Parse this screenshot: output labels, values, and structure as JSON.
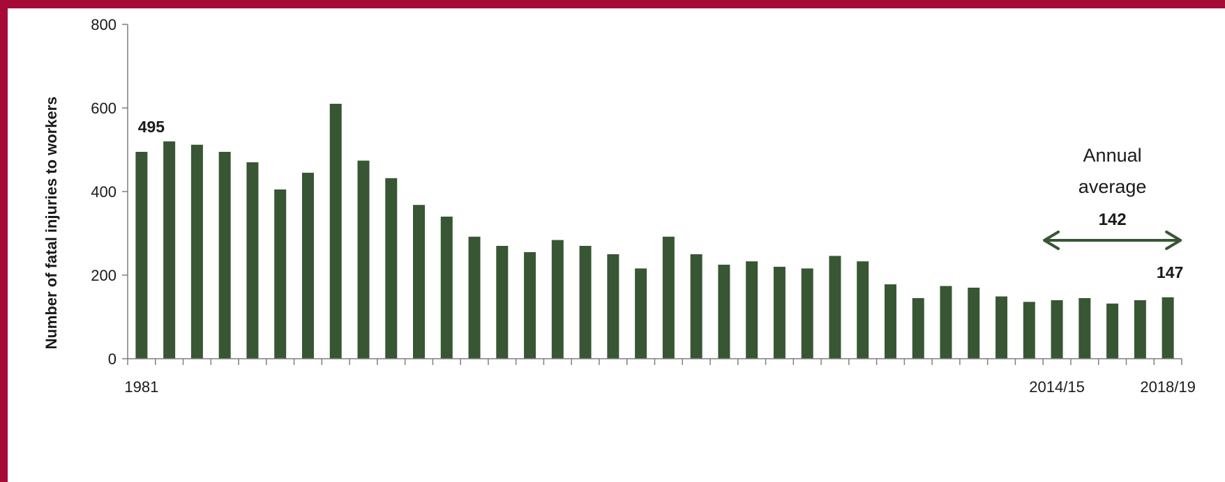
{
  "chart_data": {
    "type": "bar",
    "ylabel": "Number of fatal injuries to workers",
    "ylim": [
      0,
      800
    ],
    "yticks": [
      "0",
      "200",
      "400",
      "600",
      "800"
    ],
    "x_tick_labels": [
      {
        "index": 0,
        "label": "1981"
      },
      {
        "index": 33,
        "label": "2014/15"
      },
      {
        "index": 37,
        "label": "2018/19"
      }
    ],
    "values": [
      495,
      520,
      512,
      495,
      470,
      405,
      445,
      610,
      474,
      432,
      368,
      340,
      292,
      270,
      255,
      284,
      270,
      250,
      216,
      292,
      250,
      225,
      233,
      220,
      216,
      246,
      233,
      178,
      145,
      174,
      170,
      149,
      136,
      140,
      145,
      132,
      140,
      147
    ],
    "data_labels": [
      {
        "index": 0,
        "text": "495"
      },
      {
        "index": 37,
        "text": "147"
      }
    ],
    "bar_color": "#385634",
    "grid": false,
    "annotation": {
      "lines": [
        "Annual",
        "average"
      ],
      "value": "142",
      "arrow_color": "#385634"
    }
  }
}
